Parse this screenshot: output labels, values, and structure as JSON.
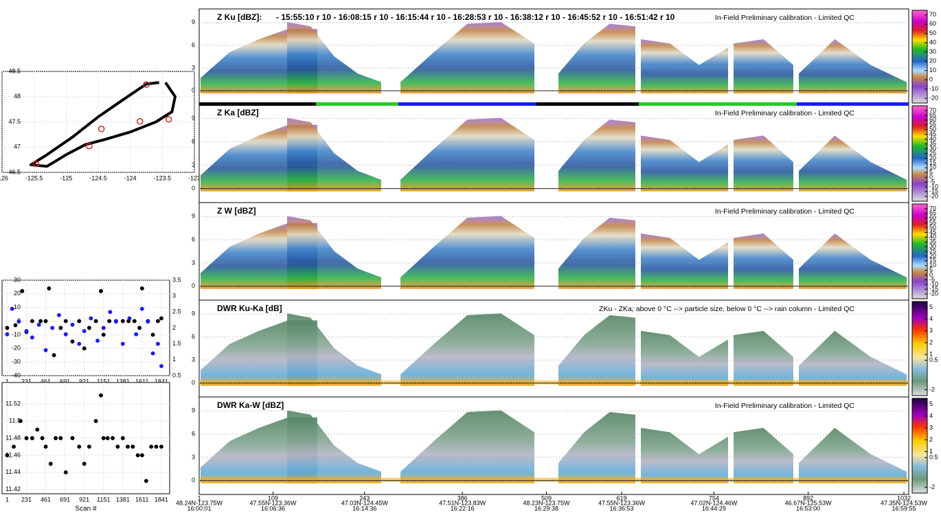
{
  "chart_data": [
    {
      "type": "line",
      "xlim": [
        -126,
        -123
      ],
      "ylim": [
        46.5,
        48.5
      ],
      "xticks": [
        -126,
        -125.5,
        -125,
        -124.5,
        -124,
        -123.5,
        -123
      ],
      "yticks": [
        46.5,
        47,
        47.5,
        48,
        48.5
      ],
      "grid": true,
      "series": [
        {
          "name": null,
          "color": "#000000",
          "marker": "line",
          "x": [
            -123.55,
            -123.75,
            -124.1,
            -124.5,
            -124.9,
            -125.3,
            -125.55,
            -125.3,
            -125.0,
            -124.7,
            -124.4,
            -124.0,
            -123.6,
            -123.35,
            -123.3,
            -123.45
          ],
          "values": [
            48.28,
            48.25,
            47.95,
            47.6,
            47.2,
            46.85,
            46.65,
            46.62,
            46.85,
            47.05,
            47.15,
            47.3,
            47.5,
            47.7,
            48.0,
            48.28
          ]
        },
        {
          "name": null,
          "color": "#dd2222",
          "marker": "circle",
          "x": [
            -123.75,
            -124.45,
            -125.47,
            -124.64,
            -123.85,
            -123.4
          ],
          "values": [
            48.24,
            47.36,
            46.67,
            47.02,
            47.51,
            47.55
          ]
        }
      ]
    },
    {
      "type": "scatter",
      "xlim": [
        -60,
        1940
      ],
      "ylim": [
        -40,
        30
      ],
      "y2lim": [
        0.5,
        3.5
      ],
      "xticks": [
        1,
        231,
        461,
        691,
        921,
        1151,
        1381,
        1611,
        1841
      ],
      "yticks": [
        -40,
        -30,
        -20,
        -10,
        0,
        10,
        20,
        30
      ],
      "y2ticks": [
        0.5,
        1,
        1.5,
        2,
        2.5,
        3,
        3.5
      ],
      "grid": true,
      "series": [
        {
          "name": null,
          "color": "#000000",
          "x": [
            1,
            100,
            180,
            231,
            300,
            400,
            461,
            500,
            560,
            640,
            700,
            780,
            860,
            921,
            980,
            1060,
            1120,
            1151,
            1220,
            1300,
            1381,
            1450,
            1520,
            1580,
            1611,
            1680,
            1740,
            1800,
            1841
          ],
          "values": [
            -5,
            -3,
            22,
            -8,
            0,
            0,
            0,
            24,
            -25,
            -5,
            0,
            -15,
            0,
            -20,
            -5,
            0,
            22,
            -10,
            0,
            0,
            0,
            0,
            0,
            -5,
            24,
            0,
            -10,
            0,
            2
          ]
        },
        {
          "name": null,
          "color": "#1a1aff",
          "axis": "y2",
          "x": [
            1,
            60,
            140,
            231,
            300,
            380,
            461,
            540,
            620,
            700,
            780,
            860,
            921,
            1000,
            1080,
            1151,
            1230,
            1300,
            1381,
            1460,
            1540,
            1611,
            1680,
            1740,
            1800,
            1841
          ],
          "values": [
            1.8,
            2.6,
            2.2,
            1.9,
            1.7,
            2.1,
            1.3,
            2.0,
            2.4,
            1.8,
            2.1,
            1.5,
            1.9,
            2.3,
            1.6,
            2.0,
            2.5,
            2.2,
            1.5,
            2.3,
            1.8,
            2.6,
            2.2,
            1.2,
            1.5,
            0.8
          ]
        }
      ]
    },
    {
      "type": "scatter",
      "xlim": [
        -60,
        1940
      ],
      "ylim": [
        11.415,
        11.545
      ],
      "xlabel": "Scan #",
      "xticks": [
        1,
        231,
        461,
        691,
        921,
        1151,
        1381,
        1611,
        1841
      ],
      "yticks": [
        11.42,
        11.44,
        11.46,
        11.48,
        11.5,
        11.52
      ],
      "grid": true,
      "series": [
        {
          "name": null,
          "color": "#000000",
          "x": [
            1,
            80,
            160,
            231,
            300,
            360,
            420,
            461,
            520,
            580,
            640,
            700,
            780,
            860,
            921,
            980,
            1060,
            1120,
            1151,
            1200,
            1260,
            1320,
            1381,
            1440,
            1500,
            1560,
            1611,
            1660,
            1720,
            1780,
            1841
          ],
          "values": [
            11.46,
            11.47,
            11.5,
            11.48,
            11.48,
            11.49,
            11.48,
            11.47,
            11.45,
            11.48,
            11.48,
            11.44,
            11.48,
            11.47,
            11.45,
            11.47,
            11.5,
            11.53,
            11.48,
            11.48,
            11.48,
            11.47,
            11.48,
            11.47,
            11.47,
            11.46,
            11.46,
            11.43,
            11.47,
            11.47,
            11.47
          ]
        }
      ]
    },
    {
      "type": "heatmap",
      "title": "Z Ku [dBZ]:",
      "subtitle": "- 15:55:10 r 10 - 16:08:15 r 10 - 16:15:44 r 10 - 16:28:53 r 10 - 16:38:12 r 10 - 16:45:52 r 10 - 16:51:42 r 10",
      "annotation": "In-Field Preliminary calibration - Limited QC",
      "ylim": [
        -1.8,
        10.8
      ],
      "yticks": [
        0,
        3,
        6,
        9
      ],
      "colorbar_ticks": [
        70,
        60,
        50,
        40,
        30,
        20,
        10,
        0,
        -10,
        -20
      ],
      "colorbar_lim": [
        -25,
        75
      ]
    },
    {
      "type": "heatmap",
      "title": "Z Ka [dBZ]",
      "annotation": "In-Field Preliminary calibration - Limited QC",
      "ylim": [
        -1.8,
        10.8
      ],
      "yticks": [
        0,
        3,
        6,
        9
      ],
      "colorbar_ticks": [
        70,
        65,
        60,
        55,
        50,
        45,
        40,
        35,
        30,
        25,
        20,
        15,
        10,
        5,
        0,
        -5,
        -10,
        -15,
        -20
      ],
      "colorbar_lim": [
        -25,
        75
      ]
    },
    {
      "type": "heatmap",
      "title": "Z W [dBZ]",
      "annotation": "In-Field Preliminary calibration - Limited QC",
      "ylim": [
        -1.8,
        10.8
      ],
      "yticks": [
        0,
        3,
        6,
        9
      ],
      "colorbar_ticks": [
        70,
        65,
        60,
        55,
        50,
        45,
        40,
        35,
        30,
        25,
        20,
        15,
        10,
        5,
        0,
        -5,
        -10,
        -15,
        -20
      ],
      "colorbar_lim": [
        -25,
        75
      ]
    },
    {
      "type": "heatmap",
      "title": "DWR Ku-Ka [dB]",
      "annotation": "ZKu - ZKa; above 0 °C --> particle size, below 0 °C --> rain column - Limited QC",
      "ylim": [
        -1.8,
        10.8
      ],
      "yticks": [
        0,
        3,
        6,
        9
      ],
      "colorbar_ticks": [
        5,
        4,
        3,
        2,
        1,
        0.5,
        -2
      ],
      "colorbar_lim": [
        -2.5,
        5.5
      ]
    },
    {
      "type": "heatmap",
      "title": "DWR Ka-W [dBZ]",
      "annotation": "In-Field Preliminary calibration - Limited QC",
      "ylim": [
        -1.8,
        10.8
      ],
      "yticks": [
        0,
        3,
        6,
        9
      ],
      "colorbar_ticks": [
        5,
        4,
        3,
        2,
        1,
        0.5,
        -2
      ],
      "colorbar_lim": [
        -2.5,
        5.5
      ],
      "xlim": [
        1,
        1032
      ],
      "xticks": [
        1,
        109,
        243,
        386,
        509,
        619,
        754,
        892,
        1032
      ],
      "x_locations": [
        "48.24N-123.75W",
        "47.55N-123.36W",
        "47.03N-124.45W",
        "47.51N-123.83W",
        "48.23N-123.75W",
        "47.55N-123.36W",
        "47.02N-124.46W",
        "46.67N-125.53W",
        "47.35N-124.53W"
      ],
      "x_times": [
        "16:00:01",
        "16:06:36",
        "16:14:36",
        "16:22:16",
        "16:29:38",
        "16:36:53",
        "16:44:29",
        "16:53:00",
        "16:59:55"
      ]
    }
  ]
}
